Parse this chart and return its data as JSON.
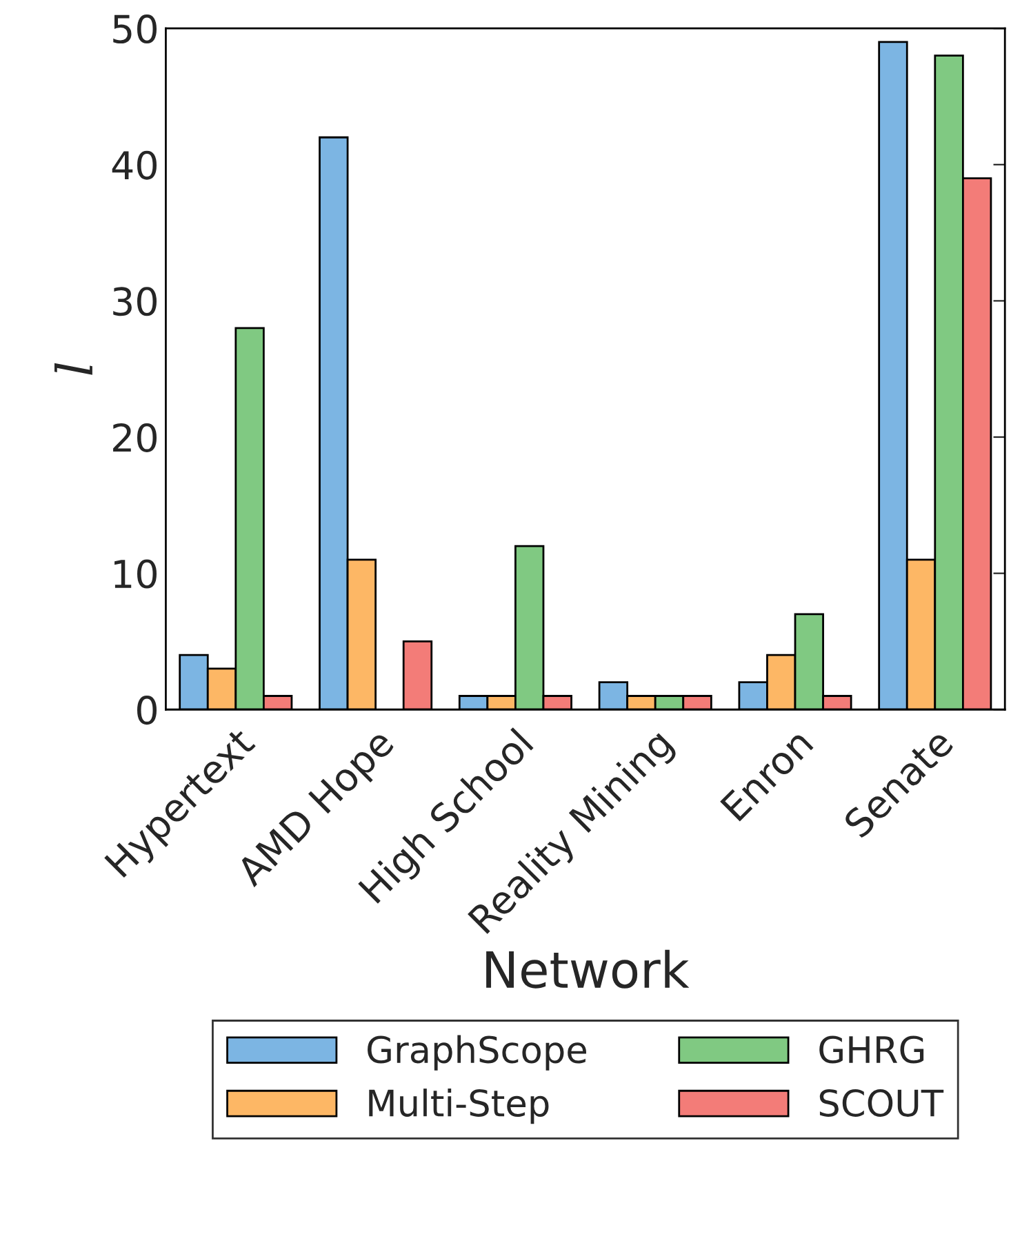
{
  "chart_data": {
    "type": "bar",
    "xlabel": "Network",
    "ylabel": "l",
    "categories": [
      "Hypertext",
      "AMD Hope",
      "High School",
      "Reality Mining",
      "Enron",
      "Senate"
    ],
    "series": [
      {
        "name": "GraphScope",
        "color": "#7cb5e3",
        "values": [
          4,
          42,
          1,
          2,
          2,
          49
        ]
      },
      {
        "name": "Multi-Step",
        "color": "#fdb765",
        "values": [
          3,
          11,
          1,
          1,
          4,
          11
        ]
      },
      {
        "name": "GHRG",
        "color": "#80c982",
        "values": [
          28,
          null,
          12,
          1,
          7,
          48
        ]
      },
      {
        "name": "SCOUT",
        "color": "#f37c78",
        "values": [
          1,
          5,
          1,
          1,
          1,
          39
        ]
      }
    ],
    "ylim": [
      0,
      50
    ],
    "yticks": [
      0,
      10,
      20,
      30,
      40,
      50
    ],
    "grid": false,
    "legend": "bottom"
  }
}
